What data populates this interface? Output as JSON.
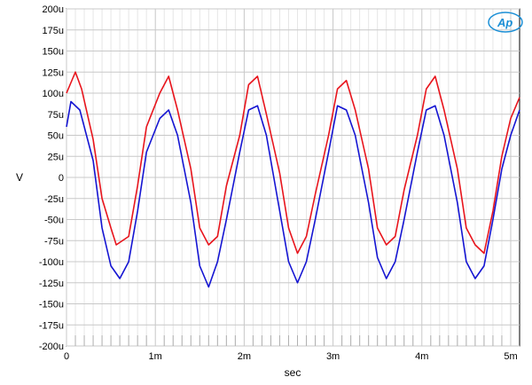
{
  "chart_data": {
    "type": "line",
    "title": "",
    "xlabel": "sec",
    "ylabel": "V",
    "xlim": [
      0,
      0.0051
    ],
    "ylim": [
      -0.0002,
      0.0002
    ],
    "x_ticks": [
      {
        "value": 0,
        "label": "0"
      },
      {
        "value": 0.001,
        "label": "1m"
      },
      {
        "value": 0.002,
        "label": "2m"
      },
      {
        "value": 0.003,
        "label": "3m"
      },
      {
        "value": 0.004,
        "label": "4m"
      },
      {
        "value": 0.005,
        "label": "5m"
      }
    ],
    "y_ticks": [
      {
        "value": 0.0002,
        "label": "200u"
      },
      {
        "value": 0.000175,
        "label": "175u"
      },
      {
        "value": 0.00015,
        "label": "150u"
      },
      {
        "value": 0.000125,
        "label": "125u"
      },
      {
        "value": 0.0001,
        "label": "100u"
      },
      {
        "value": 7.5e-05,
        "label": "75u"
      },
      {
        "value": 5e-05,
        "label": "50u"
      },
      {
        "value": 2.5e-05,
        "label": "25u"
      },
      {
        "value": 0,
        "label": "0"
      },
      {
        "value": -2.5e-05,
        "label": "-25u"
      },
      {
        "value": -5e-05,
        "label": "-50u"
      },
      {
        "value": -7.5e-05,
        "label": "-75u"
      },
      {
        "value": -0.0001,
        "label": "-100u"
      },
      {
        "value": -0.000125,
        "label": "-125u"
      },
      {
        "value": -0.00015,
        "label": "-150u"
      },
      {
        "value": -0.000175,
        "label": "-175u"
      },
      {
        "value": -0.0002,
        "label": "-200u"
      }
    ],
    "grid": true,
    "series": [
      {
        "color": "#e8141c",
        "x": [
          0,
          0.0001,
          0.00017,
          0.0003,
          0.0004,
          0.0005,
          0.00056,
          0.0007,
          0.0008,
          0.0009,
          0.00105,
          0.00115,
          0.00125,
          0.0014,
          0.0015,
          0.0016,
          0.0017,
          0.0018,
          0.00195,
          0.00205,
          0.00215,
          0.00225,
          0.0024,
          0.0025,
          0.0026,
          0.0027,
          0.0028,
          0.00295,
          0.00305,
          0.00315,
          0.00325,
          0.0034,
          0.0035,
          0.0036,
          0.0037,
          0.0038,
          0.00395,
          0.00405,
          0.00415,
          0.00425,
          0.0044,
          0.0045,
          0.0046,
          0.0047,
          0.0048,
          0.0049,
          0.005,
          0.0051
        ],
        "y": [
          0.0001,
          0.000125,
          0.000105,
          4.5e-05,
          -2.5e-05,
          -6e-05,
          -8e-05,
          -7e-05,
          -1e-05,
          6e-05,
          0.0001,
          0.00012,
          8e-05,
          1e-05,
          -6e-05,
          -8e-05,
          -7e-05,
          -1e-05,
          5e-05,
          0.00011,
          0.00012,
          7.5e-05,
          5e-06,
          -6e-05,
          -9e-05,
          -7e-05,
          -2e-05,
          5e-05,
          0.000105,
          0.000115,
          8e-05,
          1e-05,
          -6e-05,
          -8e-05,
          -7e-05,
          -1.5e-05,
          5e-05,
          0.000105,
          0.00012,
          8e-05,
          1e-05,
          -6e-05,
          -8e-05,
          -9e-05,
          -4e-05,
          2.5e-05,
          7e-05,
          9.5e-05
        ]
      },
      {
        "color": "#1414d2",
        "x": [
          0,
          5e-05,
          0.00015,
          0.0003,
          0.0004,
          0.0005,
          0.0006,
          0.0007,
          0.0008,
          0.0009,
          0.00105,
          0.00115,
          0.00125,
          0.0014,
          0.0015,
          0.0016,
          0.0017,
          0.0018,
          0.00195,
          0.00205,
          0.00215,
          0.00225,
          0.0024,
          0.0025,
          0.0026,
          0.0027,
          0.0028,
          0.00295,
          0.00305,
          0.00315,
          0.00325,
          0.0034,
          0.0035,
          0.0036,
          0.0037,
          0.0038,
          0.00395,
          0.00405,
          0.00415,
          0.00425,
          0.0044,
          0.0045,
          0.0046,
          0.0047,
          0.0048,
          0.0049,
          0.005,
          0.0051
        ],
        "y": [
          6e-05,
          9e-05,
          8e-05,
          2e-05,
          -6e-05,
          -0.000105,
          -0.00012,
          -0.0001,
          -4e-05,
          3e-05,
          7e-05,
          8e-05,
          5e-05,
          -3e-05,
          -0.000105,
          -0.00013,
          -0.0001,
          -5e-05,
          3e-05,
          8e-05,
          8.5e-05,
          5e-05,
          -4e-05,
          -0.0001,
          -0.000125,
          -0.0001,
          -5e-05,
          3e-05,
          8.5e-05,
          8e-05,
          5e-05,
          -3e-05,
          -9.5e-05,
          -0.00012,
          -0.0001,
          -5e-05,
          3e-05,
          8e-05,
          8.5e-05,
          5e-05,
          -3e-05,
          -0.0001,
          -0.00012,
          -0.000105,
          -5e-05,
          1e-05,
          5e-05,
          8e-05
        ]
      }
    ]
  },
  "logo": {
    "text": "Ap",
    "color": "#1b8fd6"
  }
}
